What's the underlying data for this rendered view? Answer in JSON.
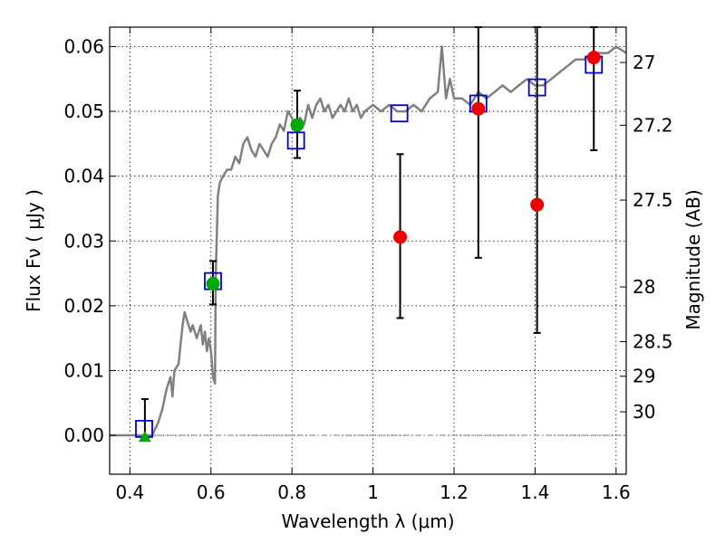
{
  "chart_data": {
    "type": "scatter",
    "xlabel": "Wavelength  λ (μm)",
    "ylabel": "Flux  Fν  ( μJy )",
    "ylabel_right": "Magnitude (AB)",
    "xlim": [
      0.35,
      1.625
    ],
    "ylim": [
      -0.006,
      0.063
    ],
    "grid": true,
    "x_ticks": [
      {
        "value": 0.4,
        "label": "0.4"
      },
      {
        "value": 0.6,
        "label": "0.6"
      },
      {
        "value": 0.8,
        "label": "0.8"
      },
      {
        "value": 1.0,
        "label": "1"
      },
      {
        "value": 1.2,
        "label": "1.2"
      },
      {
        "value": 1.4,
        "label": "1.4"
      },
      {
        "value": 1.6,
        "label": "1.6"
      }
    ],
    "y_ticks": [
      {
        "value": 0.0,
        "label": "0.00"
      },
      {
        "value": 0.01,
        "label": "0.01"
      },
      {
        "value": 0.02,
        "label": "0.02"
      },
      {
        "value": 0.03,
        "label": "0.03"
      },
      {
        "value": 0.04,
        "label": "0.04"
      },
      {
        "value": 0.05,
        "label": "0.05"
      },
      {
        "value": 0.06,
        "label": "0.06"
      }
    ],
    "y2_ticks": [
      {
        "value": 27,
        "label": "27"
      },
      {
        "value": 27.2,
        "label": "27.2"
      },
      {
        "value": 27.5,
        "label": "27.5"
      },
      {
        "value": 28,
        "label": "28"
      },
      {
        "value": 28.5,
        "label": "28.5"
      },
      {
        "value": 29,
        "label": "29"
      },
      {
        "value": 30,
        "label": "30"
      }
    ],
    "series": [
      {
        "kind": "line",
        "color": "#808080",
        "points": [
          [
            0.35,
            0.0
          ],
          [
            0.44,
            0.0
          ],
          [
            0.455,
            0.0
          ],
          [
            0.47,
            0.002
          ],
          [
            0.48,
            0.004
          ],
          [
            0.49,
            0.007
          ],
          [
            0.5,
            0.009
          ],
          [
            0.505,
            0.006
          ],
          [
            0.51,
            0.01
          ],
          [
            0.52,
            0.011
          ],
          [
            0.53,
            0.017
          ],
          [
            0.535,
            0.019
          ],
          [
            0.54,
            0.018
          ],
          [
            0.55,
            0.016
          ],
          [
            0.555,
            0.017
          ],
          [
            0.565,
            0.015
          ],
          [
            0.575,
            0.017
          ],
          [
            0.58,
            0.014
          ],
          [
            0.585,
            0.016
          ],
          [
            0.59,
            0.013
          ],
          [
            0.595,
            0.015
          ],
          [
            0.6,
            0.013
          ],
          [
            0.605,
            0.009
          ],
          [
            0.61,
            0.008
          ],
          [
            0.612,
            0.025
          ],
          [
            0.617,
            0.037
          ],
          [
            0.622,
            0.039
          ],
          [
            0.63,
            0.04
          ],
          [
            0.64,
            0.041
          ],
          [
            0.65,
            0.041
          ],
          [
            0.66,
            0.043
          ],
          [
            0.67,
            0.042
          ],
          [
            0.68,
            0.045
          ],
          [
            0.69,
            0.046
          ],
          [
            0.7,
            0.044
          ],
          [
            0.71,
            0.043
          ],
          [
            0.72,
            0.045
          ],
          [
            0.73,
            0.044
          ],
          [
            0.74,
            0.043
          ],
          [
            0.75,
            0.045
          ],
          [
            0.76,
            0.046
          ],
          [
            0.77,
            0.048
          ],
          [
            0.78,
            0.047
          ],
          [
            0.79,
            0.05
          ],
          [
            0.8,
            0.049
          ],
          [
            0.81,
            0.047
          ],
          [
            0.82,
            0.049
          ],
          [
            0.83,
            0.048
          ],
          [
            0.84,
            0.051
          ],
          [
            0.85,
            0.049
          ],
          [
            0.86,
            0.051
          ],
          [
            0.87,
            0.052
          ],
          [
            0.88,
            0.05
          ],
          [
            0.89,
            0.051
          ],
          [
            0.9,
            0.049
          ],
          [
            0.91,
            0.05
          ],
          [
            0.92,
            0.051
          ],
          [
            0.93,
            0.05
          ],
          [
            0.94,
            0.052
          ],
          [
            0.95,
            0.05
          ],
          [
            0.96,
            0.051
          ],
          [
            0.97,
            0.049
          ],
          [
            0.98,
            0.05
          ],
          [
            1.0,
            0.051
          ],
          [
            1.02,
            0.05
          ],
          [
            1.04,
            0.051
          ],
          [
            1.06,
            0.05
          ],
          [
            1.08,
            0.05
          ],
          [
            1.1,
            0.051
          ],
          [
            1.12,
            0.05
          ],
          [
            1.14,
            0.052
          ],
          [
            1.16,
            0.053
          ],
          [
            1.17,
            0.06
          ],
          [
            1.18,
            0.052
          ],
          [
            1.19,
            0.055
          ],
          [
            1.2,
            0.052
          ],
          [
            1.22,
            0.052
          ],
          [
            1.24,
            0.051
          ],
          [
            1.26,
            0.053
          ],
          [
            1.28,
            0.052
          ],
          [
            1.3,
            0.053
          ],
          [
            1.32,
            0.054
          ],
          [
            1.34,
            0.053
          ],
          [
            1.36,
            0.054
          ],
          [
            1.38,
            0.055
          ],
          [
            1.4,
            0.054
          ],
          [
            1.42,
            0.054
          ],
          [
            1.44,
            0.055
          ],
          [
            1.46,
            0.056
          ],
          [
            1.48,
            0.057
          ],
          [
            1.5,
            0.058
          ],
          [
            1.52,
            0.058
          ],
          [
            1.54,
            0.059
          ],
          [
            1.56,
            0.059
          ],
          [
            1.58,
            0.059
          ],
          [
            1.6,
            0.06
          ],
          [
            1.625,
            0.059
          ]
        ]
      },
      {
        "kind": "open-square",
        "color": "#0000cc",
        "points": [
          [
            0.435,
            0.001
          ],
          [
            0.605,
            0.0238
          ],
          [
            0.81,
            0.0455
          ],
          [
            1.065,
            0.0497
          ],
          [
            1.26,
            0.0512
          ],
          [
            1.405,
            0.0537
          ],
          [
            1.545,
            0.0572
          ]
        ]
      },
      {
        "kind": "filled-circle",
        "color": "#00aa00",
        "points": [
          [
            0.605,
            0.0234
          ],
          [
            0.813,
            0.0479
          ]
        ]
      },
      {
        "kind": "filled-triangle",
        "color": "#00aa00",
        "points": [
          [
            0.437,
            -0.0003
          ]
        ]
      },
      {
        "kind": "filled-circle",
        "color": "#ee0000",
        "points": [
          [
            1.067,
            0.0306
          ],
          [
            1.26,
            0.0504
          ],
          [
            1.405,
            0.0356
          ],
          [
            1.545,
            0.0583
          ]
        ]
      }
    ],
    "errorbars": [
      {
        "x": 0.437,
        "low": -0.0003,
        "high": 0.0056
      },
      {
        "x": 0.605,
        "low": 0.0202,
        "high": 0.0269
      },
      {
        "x": 0.813,
        "low": 0.0428,
        "high": 0.0532
      },
      {
        "x": 1.067,
        "low": 0.0181,
        "high": 0.0434
      },
      {
        "x": 1.26,
        "low": 0.0274,
        "high": 0.063
      },
      {
        "x": 1.405,
        "low": 0.0158,
        "high": 0.063
      },
      {
        "x": 1.545,
        "low": 0.044,
        "high": 0.063
      }
    ]
  }
}
